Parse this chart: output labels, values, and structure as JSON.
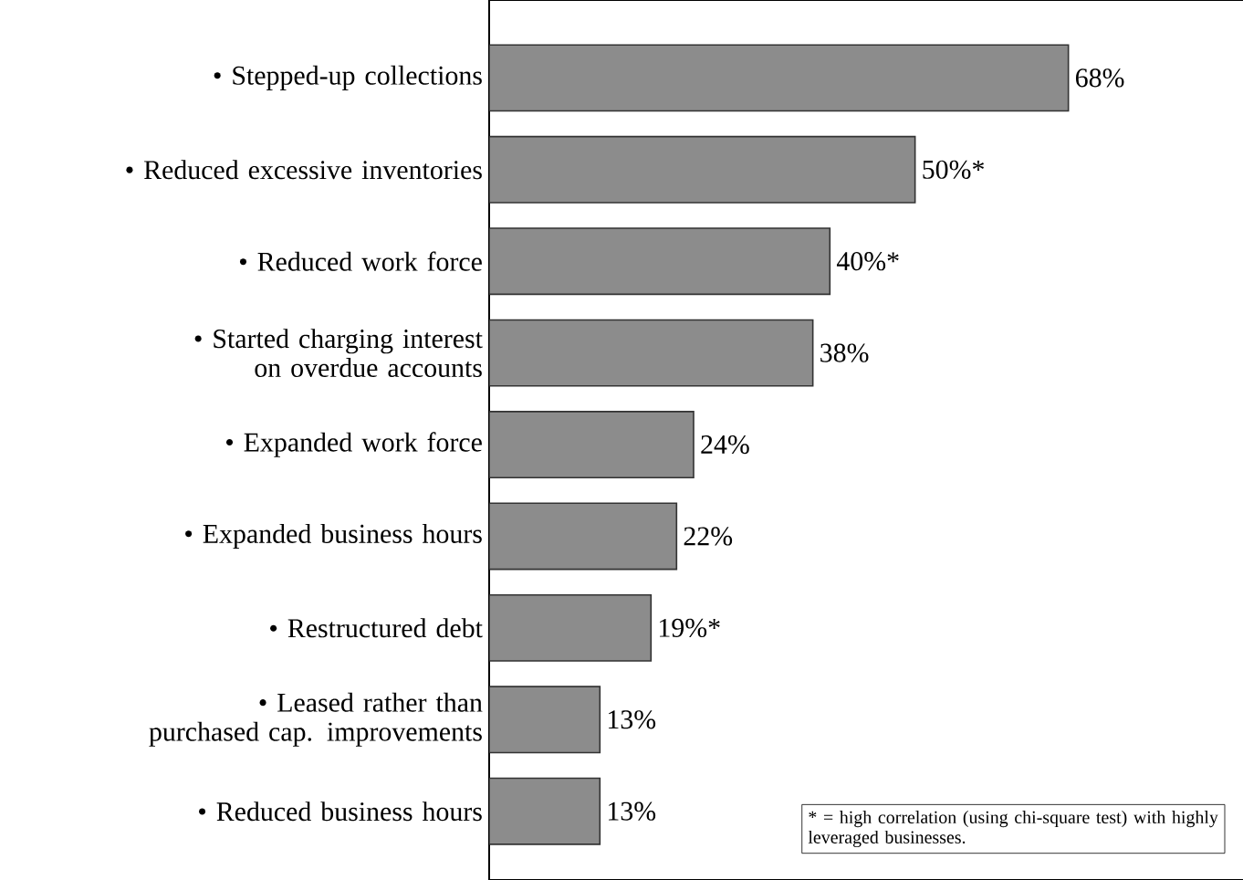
{
  "chart_data": {
    "type": "bar",
    "orientation": "horizontal",
    "categories": [
      "• Stepped-up collections",
      "• Reduced excessive inventories",
      "• Reduced work force",
      "• Started charging interest on overdue accounts",
      "• Expanded work force",
      "• Expanded business hours",
      "• Restructured debt",
      "• Leased rather than purchased cap. improvements",
      "• Reduced business hours"
    ],
    "values": [
      68,
      50,
      40,
      38,
      24,
      22,
      19,
      13,
      13
    ],
    "value_labels": [
      "68%",
      "50%*",
      "40%*",
      "38%",
      "24%",
      "22%",
      "19%*",
      "13%",
      "13%"
    ],
    "color": "#8c8c8c",
    "xlim": [
      0,
      90
    ],
    "tick_labels": "y",
    "annotations": [
      "* = high correlation (using chi-square test) with highly leveraged businesses."
    ]
  }
}
